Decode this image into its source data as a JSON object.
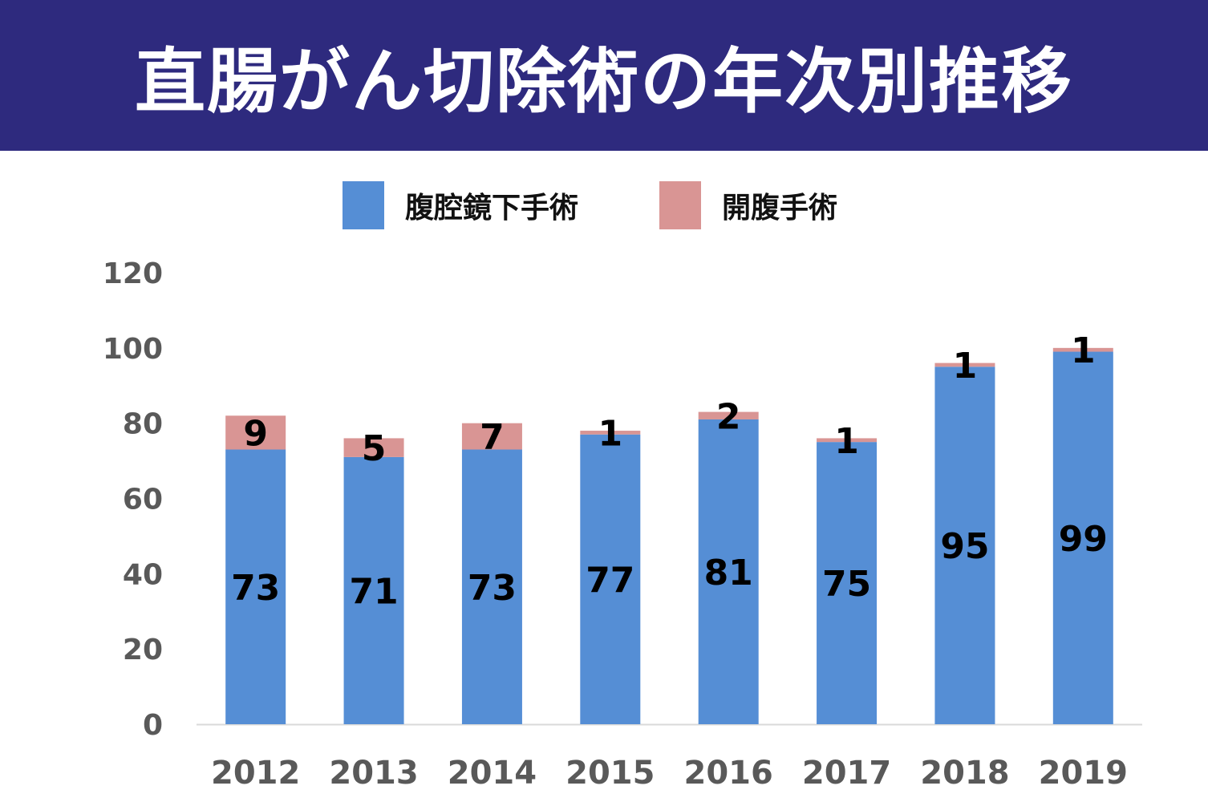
{
  "header": {
    "title": "直腸がん切除術の年次別推移"
  },
  "chart_data": {
    "type": "bar",
    "stacked": true,
    "title": "直腸がん切除術の年次別推移",
    "categories": [
      "2012",
      "2013",
      "2014",
      "2015",
      "2016",
      "2017",
      "2018",
      "2019"
    ],
    "series": [
      {
        "name": "腹腔鏡下手術",
        "color": "#558ed5",
        "values": [
          73,
          71,
          73,
          77,
          81,
          75,
          95,
          99
        ]
      },
      {
        "name": "開腹手術",
        "color": "#d99594",
        "values": [
          9,
          5,
          7,
          1,
          2,
          1,
          1,
          1
        ]
      }
    ],
    "ylim": [
      0,
      120
    ],
    "yticks": [
      "0",
      "20",
      "40",
      "60",
      "80",
      "100",
      "120"
    ],
    "grid": false,
    "legend": "top"
  }
}
